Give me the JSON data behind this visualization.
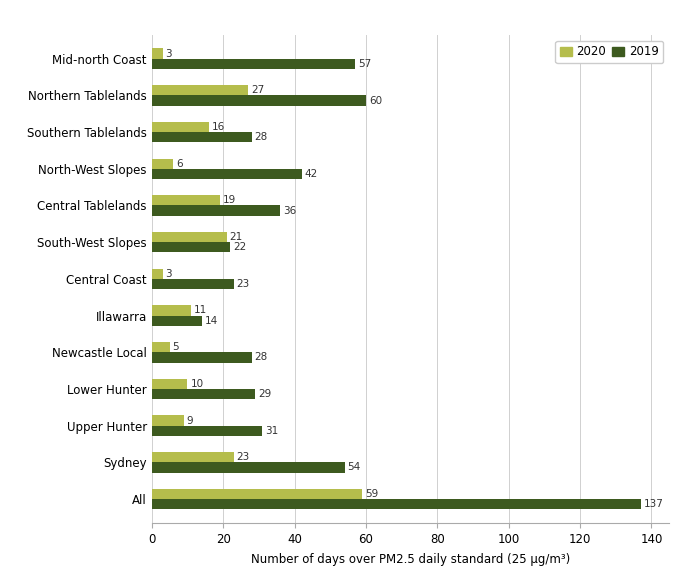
{
  "categories": [
    "All",
    "Sydney",
    "Upper Hunter",
    "Lower Hunter",
    "Newcastle Local",
    "Illawarra",
    "Central Coast",
    "South-West Slopes",
    "Central Tablelands",
    "North-West Slopes",
    "Southern Tablelands",
    "Northern Tablelands",
    "Mid-north Coast"
  ],
  "values_2020": [
    59,
    23,
    9,
    10,
    5,
    11,
    3,
    21,
    19,
    6,
    16,
    27,
    3
  ],
  "values_2019": [
    137,
    54,
    31,
    29,
    28,
    14,
    23,
    22,
    36,
    42,
    28,
    60,
    57
  ],
  "color_2020": "#b5bd4c",
  "color_2019": "#3d5a1f",
  "xlabel": "Number of days over PM2.5 daily standard (25 μg/m³)",
  "xlim": [
    0,
    145
  ],
  "xticks": [
    0,
    20,
    40,
    60,
    80,
    100,
    120,
    140
  ],
  "legend_2020": "2020",
  "legend_2019": "2019",
  "background_color": "#ffffff",
  "grid_color": "#d0d0d0",
  "bar_height": 0.28,
  "fontsize_labels": 8.5,
  "fontsize_ticks": 8.5,
  "fontsize_xlabel": 8.5,
  "fontsize_legend": 8.5,
  "fontsize_values": 7.5
}
